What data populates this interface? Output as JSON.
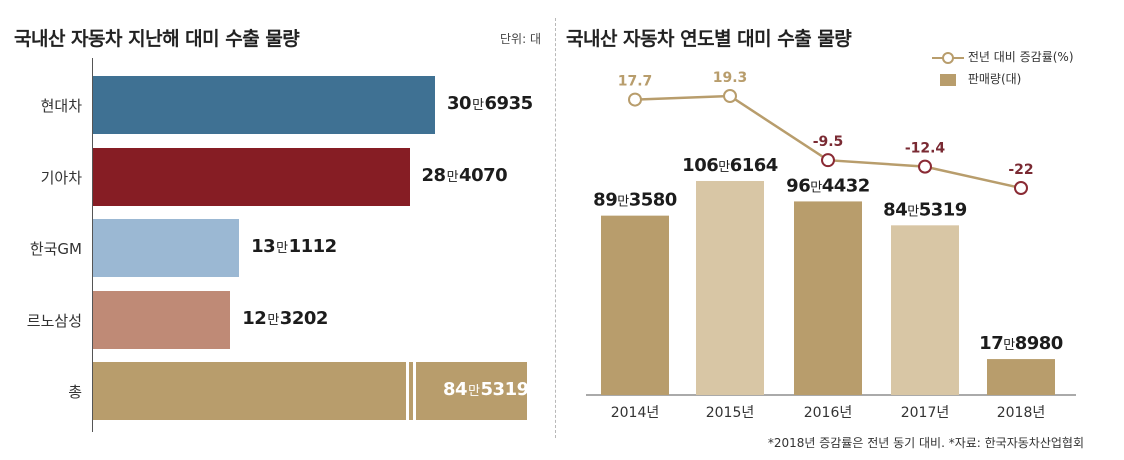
{
  "left_chart": {
    "title": "국내산 자동차 지난해 대미 수출 물량",
    "unit": "단위: 대",
    "chart_data": {
      "type": "bar",
      "orientation": "horizontal",
      "categories": [
        "현대차",
        "기아차",
        "한국GM",
        "르노삼성",
        "총"
      ],
      "values": [
        306935,
        284070,
        131112,
        123202,
        845319
      ],
      "value_labels": [
        {
          "man": "30",
          "man_unit": "만",
          "rest": "6935"
        },
        {
          "man": "28",
          "man_unit": "만",
          "rest": "4070"
        },
        {
          "man": "13",
          "man_unit": "만",
          "rest": "1112"
        },
        {
          "man": "12",
          "man_unit": "만",
          "rest": "3202"
        },
        {
          "man": "84",
          "man_unit": "만",
          "rest": "5319"
        }
      ],
      "colors": [
        "#3f7193",
        "#861d24",
        "#9bb8d3",
        "#bf8a76",
        "#b89d6c"
      ],
      "axis_break_on_last": true
    }
  },
  "right_chart": {
    "title": "국내산 자동차 연도별 대미 수출 물량",
    "legend": {
      "line_label": "전년 대비 증감률(%)",
      "bar_label": "판매량(대)"
    },
    "footnote": "*2018년 증감률은 전년 동기 대비. *자료: 한국자동차산업협회",
    "chart_data": {
      "type": "bar",
      "categories": [
        "2014년",
        "2015년",
        "2016년",
        "2017년",
        "2018년"
      ],
      "series": [
        {
          "name": "판매량(대)",
          "type": "bar",
          "values": [
            893580,
            1066164,
            964432,
            845319,
            178980
          ]
        },
        {
          "name": "전년 대비 증감률(%)",
          "type": "line",
          "values": [
            17.7,
            19.3,
            -9.5,
            -12.4,
            -22
          ]
        }
      ],
      "bar_labels": [
        {
          "man": "89",
          "man_unit": "만",
          "rest": "3580"
        },
        {
          "man": "106",
          "man_unit": "만",
          "rest": "6164"
        },
        {
          "man": "96",
          "man_unit": "만",
          "rest": "4432"
        },
        {
          "man": "84",
          "man_unit": "만",
          "rest": "5319"
        },
        {
          "man": "17",
          "man_unit": "만",
          "rest": "8980"
        }
      ],
      "line_labels": [
        "17.7",
        "19.3",
        "-9.5",
        "-12.4",
        "-22"
      ],
      "bar_colors": [
        "#b89d6c",
        "#d8c6a5",
        "#b89d6c",
        "#d8c6a5",
        "#b89d6c"
      ],
      "line_color": "#b89d6c",
      "positive_label_color": "#b89d6c",
      "negative_label_color": "#7a2a33",
      "negative_marker_color": "#8a2a34"
    }
  }
}
